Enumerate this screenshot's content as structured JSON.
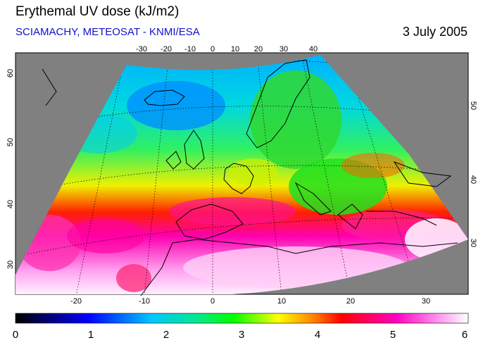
{
  "header": {
    "title": "Erythemal UV dose (kJ/m2)",
    "subtitle": "SCIAMACHY, METEOSAT - KNMI/ESA",
    "date": "3 July 2005"
  },
  "map": {
    "top_lon_labels": [
      "-30",
      "-20",
      "-10",
      "0",
      "10",
      "20",
      "30",
      "40"
    ],
    "bottom_lon_labels": [
      "-20",
      "-10",
      "0",
      "10",
      "20",
      "30"
    ],
    "left_lat_labels": [
      "60",
      "50",
      "40",
      "30"
    ],
    "right_lat_labels": [
      "50",
      "40",
      "30"
    ]
  },
  "colorbar": {
    "min": 0,
    "max": 6,
    "tick_labels": [
      "0",
      "1",
      "2",
      "3",
      "4",
      "5",
      "6"
    ],
    "colors": [
      "#000000",
      "#0000ff",
      "#00c8ff",
      "#00ff00",
      "#ffff00",
      "#ff0000",
      "#ff00ff",
      "#ffffff"
    ]
  }
}
